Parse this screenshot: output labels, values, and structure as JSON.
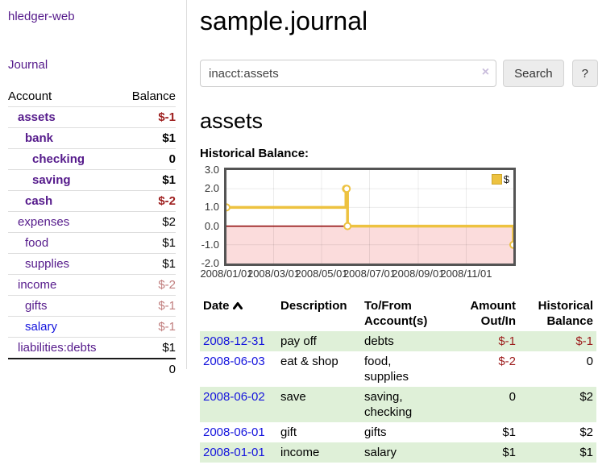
{
  "app_title": "hledger-web",
  "sidebar": {
    "journal_link": "Journal",
    "account_header": "Account",
    "balance_header": "Balance",
    "accounts": [
      {
        "name": "assets",
        "balance": "$-1"
      },
      {
        "name": "bank",
        "balance": "$1"
      },
      {
        "name": "checking",
        "balance": "0"
      },
      {
        "name": "saving",
        "balance": "$1"
      },
      {
        "name": "cash",
        "balance": "$-2"
      },
      {
        "name": "expenses",
        "balance": "$2"
      },
      {
        "name": "food",
        "balance": "$1"
      },
      {
        "name": "supplies",
        "balance": "$1"
      },
      {
        "name": "income",
        "balance": "$-2"
      },
      {
        "name": "gifts",
        "balance": "$-1"
      },
      {
        "name": "salary",
        "balance": "$-1"
      },
      {
        "name": "liabilities:debts",
        "balance": "$1"
      }
    ],
    "total": "0"
  },
  "main": {
    "title": "sample.journal",
    "search": {
      "value": "inacct:assets",
      "clear_icon": "×",
      "search_button": "Search",
      "help_button": "?"
    },
    "account_heading": "assets",
    "chart_title": "Historical Balance:"
  },
  "chart_data": {
    "type": "line",
    "step": true,
    "title": "Historical Balance",
    "legend": "$",
    "x_range_days": 365,
    "ylim": [
      -2,
      3
    ],
    "series": [
      {
        "name": "$",
        "color": "#edc240",
        "points": [
          {
            "date": "2008-01-01",
            "day": 0,
            "value": 1
          },
          {
            "date": "2008-06-01",
            "day": 152,
            "value": 2
          },
          {
            "date": "2008-06-02",
            "day": 153,
            "value": 2
          },
          {
            "date": "2008-06-03",
            "day": 154,
            "value": 0
          },
          {
            "date": "2008-12-31",
            "day": 365,
            "value": -1
          }
        ]
      }
    ],
    "yticks": [
      {
        "value": 3,
        "label": "3.0"
      },
      {
        "value": 2,
        "label": "2.0"
      },
      {
        "value": 1,
        "label": "1.0"
      },
      {
        "value": 0,
        "label": "0.0"
      },
      {
        "value": -1,
        "label": "-1.0"
      },
      {
        "value": -2,
        "label": "-2.0"
      }
    ],
    "ygrid": [
      2,
      1,
      -1
    ],
    "xticks": [
      {
        "day": 0,
        "label": "2008/01/01"
      },
      {
        "day": 60,
        "label": "2008/03/01"
      },
      {
        "day": 121,
        "label": "2008/05/01"
      },
      {
        "day": 182,
        "label": "2008/07/01"
      },
      {
        "day": 244,
        "label": "2008/09/01"
      },
      {
        "day": 305,
        "label": "2008/11/01"
      }
    ],
    "colors": {
      "series": "#edc240",
      "negative_region": "#fbdcdc",
      "zero_line": "#8b0000",
      "grid": "rgba(0,0,0,0.08)",
      "border": "#545454"
    }
  },
  "register": {
    "headers": {
      "date": "Date",
      "description": "Description",
      "accounts": "To/From Account(s)",
      "amount": "Amount Out/In",
      "balance": "Historical Balance"
    },
    "rows": [
      {
        "date": "2008-12-31",
        "description": "pay off",
        "accounts": "debts",
        "amount": "$-1",
        "balance": "$-1"
      },
      {
        "date": "2008-06-03",
        "description": "eat & shop",
        "accounts": "food, supplies",
        "amount": "$-2",
        "balance": "0"
      },
      {
        "date": "2008-06-02",
        "description": "save",
        "accounts": "saving, checking",
        "amount": "0",
        "balance": "$2"
      },
      {
        "date": "2008-06-01",
        "description": "gift",
        "accounts": "gifts",
        "amount": "$1",
        "balance": "$2"
      },
      {
        "date": "2008-01-01",
        "description": "income",
        "accounts": "salary",
        "amount": "$1",
        "balance": "$1"
      }
    ]
  }
}
